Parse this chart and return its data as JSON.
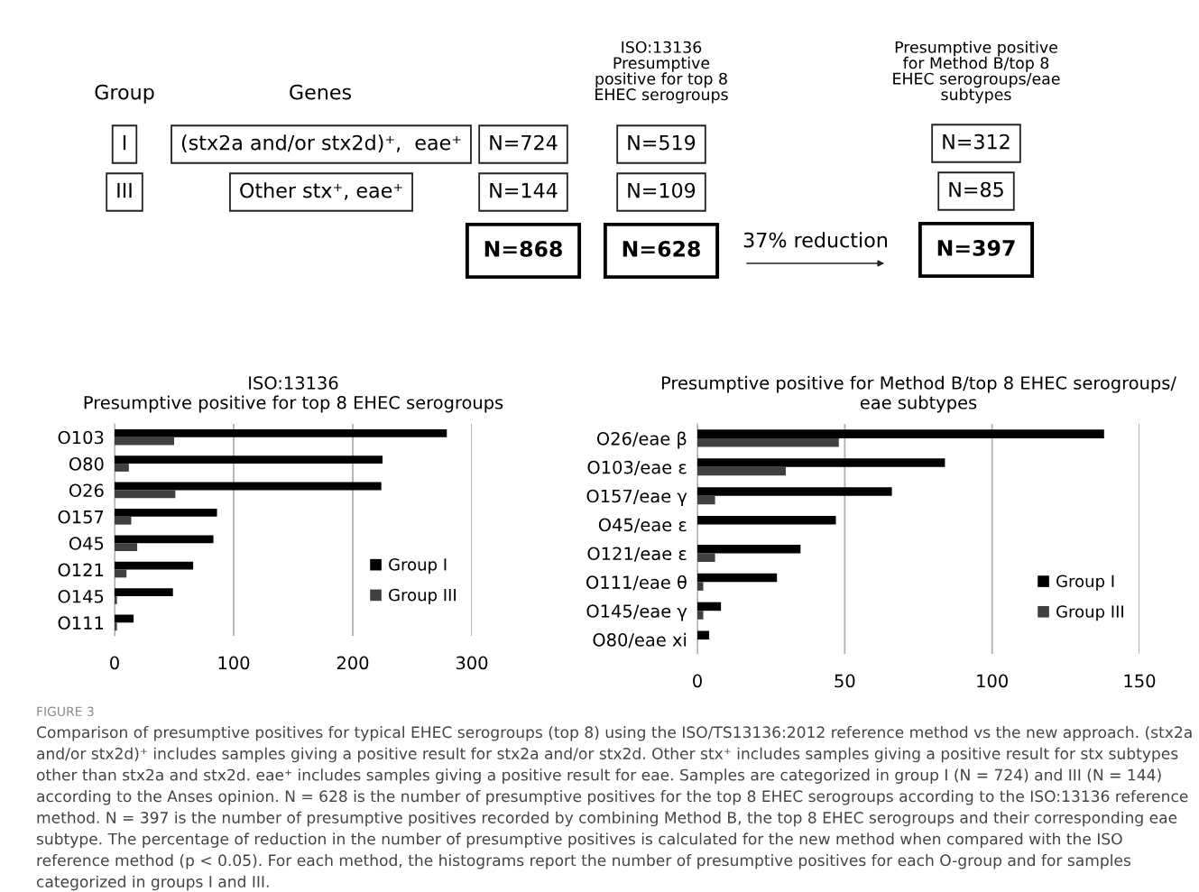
{
  "chart_data": [
    {
      "type": "other",
      "annotations": [
        "Group",
        "Genes",
        "ISO:13136\nPresumptive\npositive for top 8\nEHEC serogroups",
        "Presumptive positive\nfor Method B/top 8\nEHEC serogroups/eae\nsubtypes",
        "I",
        "(stx2a and/or stx2d)⁺,  eae⁺",
        "N=724",
        "N=519",
        "N=312",
        "III",
        "Other stx⁺, eae⁺",
        "N=144",
        "N=109",
        "N=85",
        "N=868",
        "N=628",
        "37% reduction",
        "N=397"
      ]
    },
    {
      "type": "bar",
      "orientation": "horizontal",
      "title": "ISO:13136\nPresumptive positive for top 8 EHEC serogroups",
      "categories": [
        "O103",
        "O80",
        "O26",
        "O157",
        "O45",
        "O121",
        "O145",
        "O111"
      ],
      "series": [
        {
          "name": "Group I",
          "color": "#000000",
          "values": [
            279,
            225,
            224,
            86,
            83,
            66,
            49,
            16
          ]
        },
        {
          "name": "Group III",
          "color": "#404040",
          "values": [
            50,
            12,
            51,
            14,
            19,
            10,
            2,
            2
          ]
        }
      ],
      "xlim": [
        0,
        300
      ],
      "xticks": [
        0,
        100,
        200,
        300
      ],
      "grid": "x",
      "legend": "bottom right"
    },
    {
      "type": "bar",
      "orientation": "horizontal",
      "title": "Presumptive positive for Method B/top 8 EHEC serogroups/\neae subtypes",
      "categories": [
        "O26/eae β",
        "O103/eae ε",
        "O157/eae γ",
        "O45/eae ε",
        "O121/eae ε",
        "O111/eae θ",
        "O145/eae γ",
        "O80/eae xi"
      ],
      "series": [
        {
          "name": "Group I",
          "color": "#000000",
          "values": [
            138,
            84,
            66,
            47,
            35,
            27,
            8,
            4
          ]
        },
        {
          "name": "Group III",
          "color": "#404040",
          "values": [
            48,
            30,
            6,
            null,
            6,
            2,
            2,
            null
          ]
        }
      ],
      "xlim": [
        0,
        150
      ],
      "xticks": [
        0,
        50,
        100,
        150
      ],
      "grid": "x",
      "legend": "bottom right",
      "annotations": [
        "FIGURE 3",
        "Comparison of presumptive positives for typical EHEC serogroups (top 8) using the ISO/TS13136:2012 reference method vs the new approach. (stx2a and/or stx2d)⁺ includes samples giving a positive result for stx2a and/or stx2d. Other stx⁺ includes samples giving a positive result for stx subtypes other than stx2a and stx2d. eae⁺ includes samples giving a positive result for eae. Samples are categorized in group I (N = 724) and III (N = 144) according to the Anses opinion. N = 628 is the number of presumptive positives for the top 8 EHEC serogroups according to the ISO:13136 reference method. N = 397 is the number of presumptive positives recorded by combining Method B, the top 8 EHEC serogroups and their corresponding eae subtype. The percentage of reduction in the number of presumptive positives is calculated for the new method when compared with the ISO reference method (p < 0.05). For each method, the histograms report the number of presumptive positives for each O-group and for samples categorized in groups I and III."
      ]
    }
  ]
}
